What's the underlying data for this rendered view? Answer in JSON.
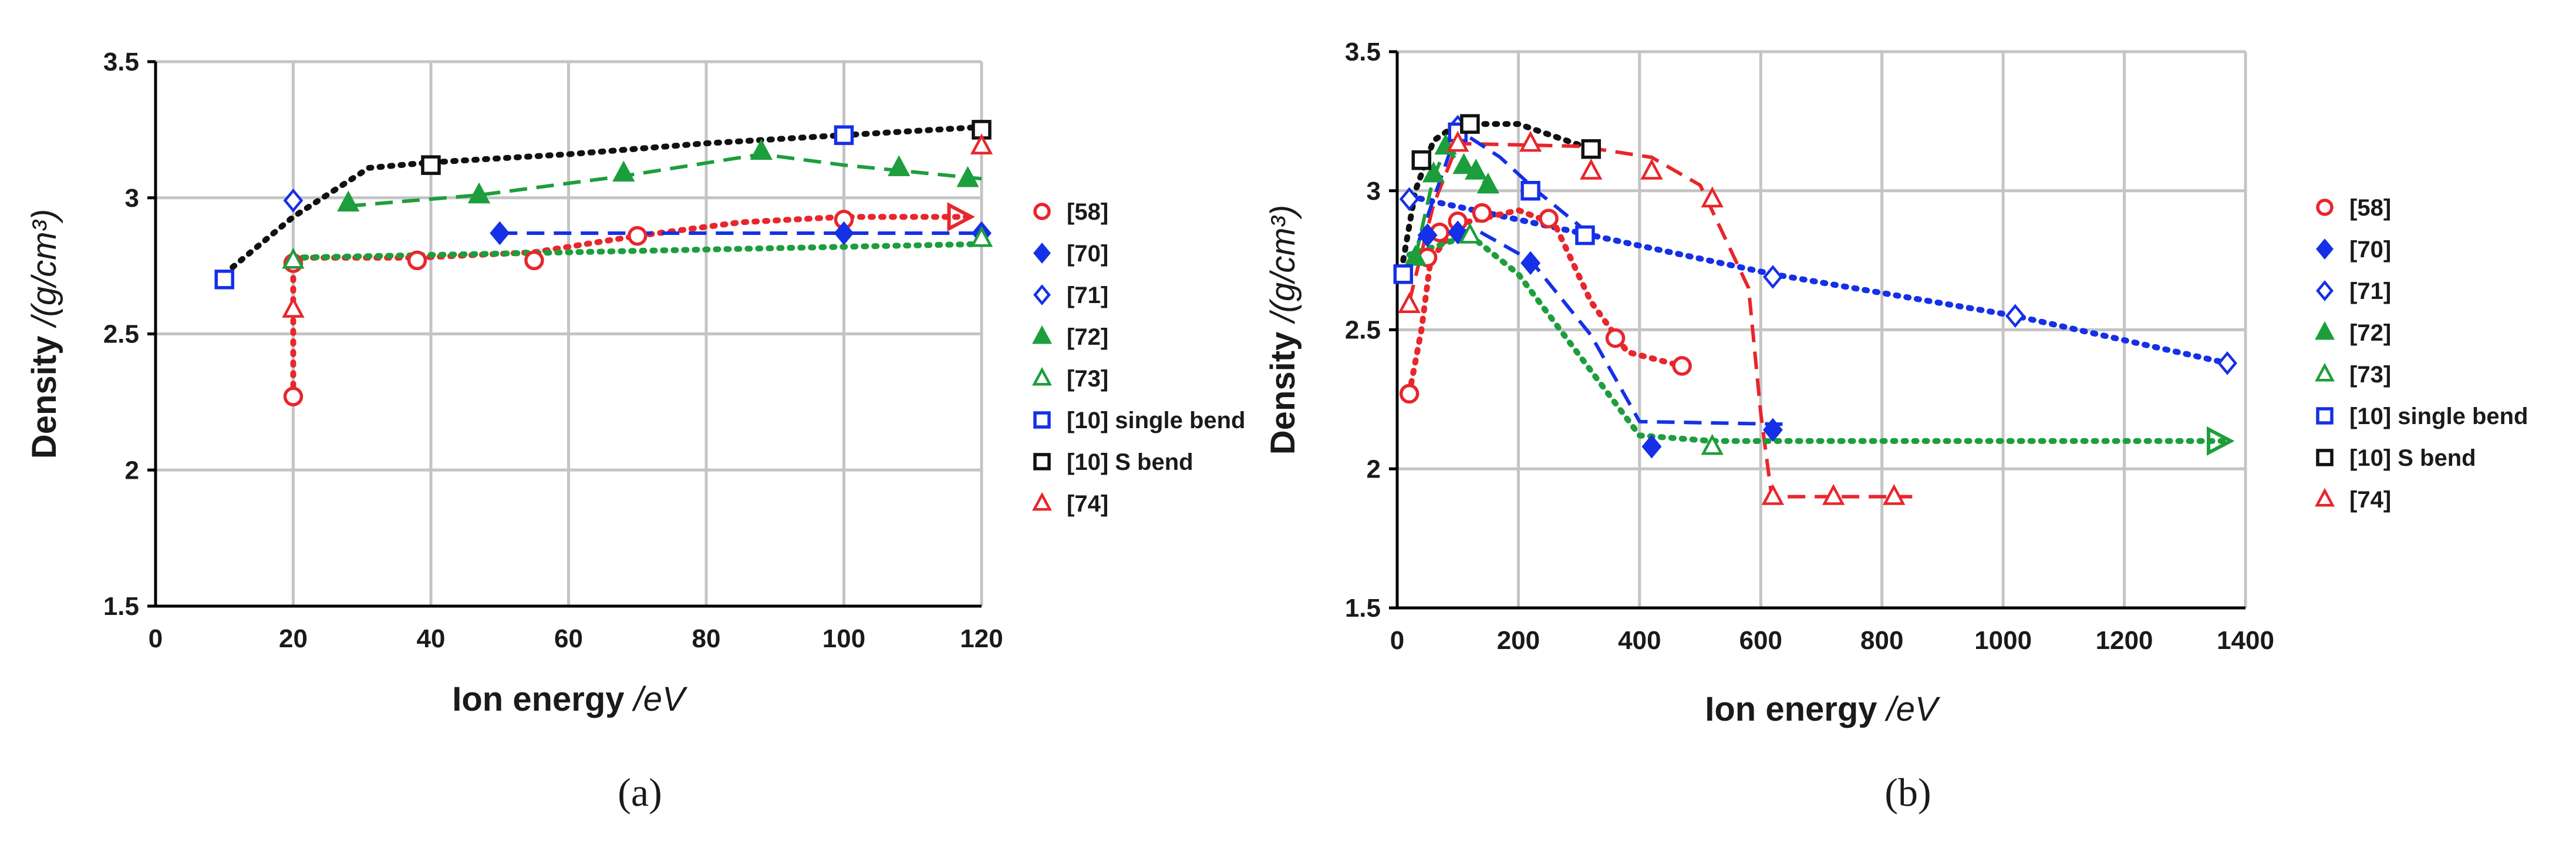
{
  "colors": {
    "red": "#e8262c",
    "blue": "#1530e6",
    "green": "#1d9e3c",
    "black": "#111111"
  },
  "legend": [
    {
      "key": "s58",
      "label": "[58]",
      "color": "red",
      "marker": "circle",
      "fill": false
    },
    {
      "key": "s70",
      "label": "[70]",
      "color": "blue",
      "marker": "diamond",
      "fill": true
    },
    {
      "key": "s71",
      "label": "[71]",
      "color": "blue",
      "marker": "diamond",
      "fill": false
    },
    {
      "key": "s72",
      "label": "[72]",
      "color": "green",
      "marker": "triangle",
      "fill": true
    },
    {
      "key": "s73",
      "label": "[73]",
      "color": "green",
      "marker": "triangle",
      "fill": false
    },
    {
      "key": "s10a",
      "label": "[10] single bend",
      "color": "blue",
      "marker": "square",
      "fill": false
    },
    {
      "key": "s10b",
      "label": "[10] S bend",
      "color": "black",
      "marker": "square",
      "fill": false
    },
    {
      "key": "s74",
      "label": "[74]",
      "color": "red",
      "marker": "triangle",
      "fill": false
    }
  ],
  "chart_data": [
    {
      "panel": "(a)",
      "type": "scatter",
      "xlabel_main": "Ion energy",
      "xlabel_unit": "/eV",
      "ylabel_main": "Density",
      "ylabel_unit": "/(g/cm³)",
      "xlim": [
        0,
        120
      ],
      "ylim": [
        1.5,
        3.5
      ],
      "xticks": [
        0,
        20,
        40,
        60,
        80,
        100,
        120
      ],
      "yticks": [
        1.5,
        2,
        2.5,
        3,
        3.5
      ],
      "ytick_labels": [
        "1.5",
        "2",
        "2.5",
        "3",
        "3.5"
      ],
      "series": [
        {
          "key": "s58",
          "points": [
            [
              20,
              2.27
            ],
            [
              20,
              2.76
            ],
            [
              38,
              2.77
            ],
            [
              55,
              2.77
            ],
            [
              70,
              2.86
            ],
            [
              100,
              2.92
            ]
          ]
        },
        {
          "key": "s70",
          "points": [
            [
              50,
              2.87
            ],
            [
              100,
              2.87
            ],
            [
              120,
              2.87
            ]
          ]
        },
        {
          "key": "s71",
          "points": [
            [
              20,
              2.99
            ]
          ]
        },
        {
          "key": "s72",
          "points": [
            [
              28,
              2.98
            ],
            [
              47,
              3.01
            ],
            [
              68,
              3.09
            ],
            [
              88,
              3.17
            ],
            [
              108,
              3.11
            ],
            [
              118,
              3.07
            ]
          ]
        },
        {
          "key": "s73",
          "points": [
            [
              20,
              2.77
            ],
            [
              120,
              2.85
            ]
          ]
        },
        {
          "key": "s10a",
          "points": [
            [
              10,
              2.7
            ],
            [
              100,
              3.23
            ]
          ]
        },
        {
          "key": "s10b",
          "points": [
            [
              40,
              3.12
            ],
            [
              120,
              3.25
            ]
          ]
        },
        {
          "key": "s74",
          "points": [
            [
              20,
              2.59
            ],
            [
              120,
              3.19
            ]
          ]
        }
      ],
      "trendlines": [
        {
          "color": "black",
          "dash": "dot",
          "points": [
            [
              10,
              2.72
            ],
            [
              20,
              2.93
            ],
            [
              31,
              3.11
            ],
            [
              40,
              3.13
            ],
            [
              60,
              3.16
            ],
            [
              80,
              3.2
            ],
            [
              100,
              3.23
            ],
            [
              120,
              3.26
            ]
          ]
        },
        {
          "color": "green",
          "dash": "dash",
          "points": [
            [
              28,
              2.97
            ],
            [
              47,
              3.01
            ],
            [
              68,
              3.08
            ],
            [
              88,
              3.16
            ],
            [
              100,
              3.12
            ],
            [
              120,
              3.07
            ]
          ]
        },
        {
          "color": "red",
          "dash": "dot",
          "arrow": true,
          "points": [
            [
              20,
              2.27
            ],
            [
              20,
              2.78
            ],
            [
              38,
              2.78
            ],
            [
              55,
              2.8
            ],
            [
              70,
              2.86
            ],
            [
              85,
              2.91
            ],
            [
              100,
              2.93
            ],
            [
              118,
              2.93
            ]
          ]
        },
        {
          "color": "blue",
          "dash": "dash",
          "points": [
            [
              50,
              2.87
            ],
            [
              120,
              2.87
            ]
          ]
        },
        {
          "color": "green",
          "dash": "dot",
          "points": [
            [
              20,
              2.78
            ],
            [
              60,
              2.8
            ],
            [
              120,
              2.83
            ]
          ]
        }
      ]
    },
    {
      "panel": "(b)",
      "type": "scatter",
      "xlabel_main": "Ion energy",
      "xlabel_unit": "/eV",
      "ylabel_main": "Density",
      "ylabel_unit": "/(g/cm³)",
      "xlim": [
        0,
        1400
      ],
      "ylim": [
        1.5,
        3.5
      ],
      "xticks": [
        0,
        200,
        400,
        600,
        800,
        1000,
        1200,
        1400
      ],
      "yticks": [
        1.5,
        2,
        2.5,
        3,
        3.5
      ],
      "ytick_labels": [
        "1.5",
        "2",
        "2.5",
        "3",
        "3.5"
      ],
      "series": [
        {
          "key": "s58",
          "points": [
            [
              20,
              2.27
            ],
            [
              50,
              2.76
            ],
            [
              70,
              2.85
            ],
            [
              100,
              2.89
            ],
            [
              140,
              2.92
            ],
            [
              250,
              2.9
            ],
            [
              360,
              2.47
            ],
            [
              470,
              2.37
            ]
          ]
        },
        {
          "key": "s70",
          "points": [
            [
              50,
              2.84
            ],
            [
              100,
              2.85
            ],
            [
              220,
              2.74
            ],
            [
              420,
              2.08
            ],
            [
              620,
              2.14
            ]
          ]
        },
        {
          "key": "s71",
          "points": [
            [
              20,
              2.97
            ],
            [
              100,
              3.23
            ],
            [
              620,
              2.69
            ],
            [
              1020,
              2.55
            ],
            [
              1370,
              2.38
            ]
          ]
        },
        {
          "key": "s72",
          "points": [
            [
              30,
              2.76
            ],
            [
              60,
              3.06
            ],
            [
              80,
              3.16
            ],
            [
              110,
              3.09
            ],
            [
              130,
              3.07
            ],
            [
              150,
              3.02
            ]
          ]
        },
        {
          "key": "s73",
          "points": [
            [
              120,
              2.84
            ],
            [
              520,
              2.08
            ]
          ]
        },
        {
          "key": "s10a",
          "points": [
            [
              10,
              2.7
            ],
            [
              100,
              3.21
            ],
            [
              220,
              3.0
            ],
            [
              310,
              2.84
            ]
          ]
        },
        {
          "key": "s10b",
          "points": [
            [
              40,
              3.11
            ],
            [
              120,
              3.24
            ],
            [
              320,
              3.15
            ]
          ]
        },
        {
          "key": "s74",
          "points": [
            [
              20,
              2.59
            ],
            [
              100,
              3.17
            ],
            [
              220,
              3.17
            ],
            [
              320,
              3.07
            ],
            [
              420,
              3.07
            ],
            [
              520,
              2.97
            ],
            [
              620,
              1.9
            ],
            [
              720,
              1.9
            ],
            [
              820,
              1.9
            ]
          ]
        }
      ],
      "trendlines": [
        {
          "color": "black",
          "dash": "dot",
          "points": [
            [
              10,
              2.75
            ],
            [
              30,
              3.0
            ],
            [
              60,
              3.18
            ],
            [
              100,
              3.24
            ],
            [
              200,
              3.24
            ],
            [
              320,
              3.15
            ]
          ]
        },
        {
          "color": "blue",
          "dash": "dot",
          "points": [
            [
              20,
              2.98
            ],
            [
              620,
              2.7
            ],
            [
              1020,
              2.55
            ],
            [
              1370,
              2.38
            ]
          ]
        },
        {
          "color": "red",
          "dash": "dash",
          "points": [
            [
              20,
              2.6
            ],
            [
              60,
              2.95
            ],
            [
              100,
              3.17
            ],
            [
              300,
              3.16
            ],
            [
              420,
              3.12
            ],
            [
              500,
              3.02
            ],
            [
              580,
              2.65
            ],
            [
              600,
              2.2
            ],
            [
              618,
              1.9
            ],
            [
              850,
              1.9
            ]
          ]
        },
        {
          "color": "red",
          "dash": "dot",
          "points": [
            [
              20,
              2.27
            ],
            [
              40,
              2.5
            ],
            [
              55,
              2.75
            ],
            [
              100,
              2.88
            ],
            [
              200,
              2.93
            ],
            [
              260,
              2.88
            ],
            [
              320,
              2.6
            ],
            [
              380,
              2.42
            ],
            [
              470,
              2.37
            ]
          ]
        },
        {
          "color": "blue",
          "dash": "dash",
          "points": [
            [
              20,
              2.72
            ],
            [
              100,
              3.22
            ],
            [
              170,
              3.12
            ],
            [
              230,
              3.0
            ],
            [
              320,
              2.84
            ]
          ]
        },
        {
          "color": "blue",
          "dash": "dash",
          "points": [
            [
              50,
              2.84
            ],
            [
              130,
              2.86
            ],
            [
              220,
              2.75
            ],
            [
              320,
              2.48
            ],
            [
              400,
              2.17
            ],
            [
              650,
              2.16
            ]
          ]
        },
        {
          "color": "green",
          "dash": "dash",
          "points": [
            [
              30,
              2.76
            ],
            [
              60,
              3.05
            ],
            [
              80,
              3.15
            ],
            [
              110,
              3.09
            ],
            [
              150,
              3.02
            ]
          ]
        },
        {
          "color": "green",
          "dash": "dot",
          "arrow": true,
          "points": [
            [
              20,
              2.77
            ],
            [
              120,
              2.84
            ],
            [
              200,
              2.7
            ],
            [
              400,
              2.12
            ],
            [
              520,
              2.1
            ],
            [
              1370,
              2.1
            ]
          ]
        }
      ]
    }
  ]
}
